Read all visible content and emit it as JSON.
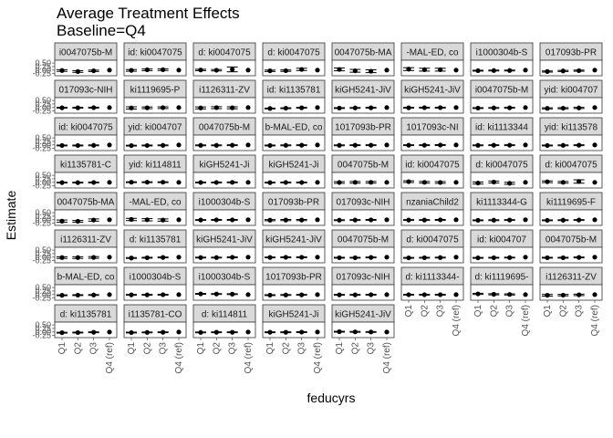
{
  "chart_data": {
    "type": "scatter",
    "title": "Average Treatment Effects",
    "subtitle": "Baseline=Q4",
    "xlabel": "feducyrs",
    "ylabel": "Estimate",
    "x_categories": [
      "Q1",
      "Q2",
      "Q3",
      "Q4 (ref)"
    ],
    "y_ticks": [
      0.5,
      0.25,
      0.0,
      -0.25
    ],
    "y_tick_labels": [
      "0.50",
      "0.25",
      "0.00",
      "-0.25"
    ],
    "ylim": [
      -0.4,
      0.7
    ],
    "grid": false,
    "layout": "facet_wrap",
    "point_color": "#000000",
    "strip_fill": "#d9d9d9",
    "panels": [
      {
        "strip": "i0047075b-M",
        "values": [
          -0.03,
          -0.1,
          -0.05,
          0.0
        ],
        "err": [
          0.06,
          0.06,
          0.05,
          0
        ]
      },
      {
        "strip": "id: ki0047075",
        "values": [
          -0.02,
          0.02,
          0.03,
          0.0
        ],
        "err": [
          0.06,
          0.06,
          0.06,
          0
        ]
      },
      {
        "strip": "d: ki0047075",
        "values": [
          0.01,
          -0.01,
          0.05,
          0.0
        ],
        "err": [
          0.05,
          0.05,
          0.17,
          0
        ]
      },
      {
        "strip": "d: ki0047075",
        "values": [
          -0.05,
          -0.04,
          0.05,
          0.0
        ],
        "err": [
          0.05,
          0.05,
          0.08,
          0
        ]
      },
      {
        "strip": "0047075b-MA",
        "values": [
          0.05,
          -0.05,
          -0.08,
          0.0
        ],
        "err": [
          0.1,
          0.1,
          0.1,
          0
        ]
      },
      {
        "strip": "-MAL-ED, co",
        "values": [
          0.07,
          0.03,
          0.03,
          0.0
        ],
        "err": [
          0.1,
          0.1,
          0.1,
          0
        ]
      },
      {
        "strip": "i1000304b-S",
        "values": [
          -0.04,
          -0.03,
          -0.03,
          0.0
        ],
        "err": [
          0.03,
          0.03,
          0.03,
          0
        ]
      },
      {
        "strip": "017093b-PR",
        "values": [
          -0.1,
          -0.06,
          -0.04,
          0.0
        ],
        "err": [
          0.04,
          0.04,
          0.04,
          0
        ]
      },
      {
        "strip": "017093c-NIH",
        "values": [
          -0.02,
          -0.02,
          -0.01,
          0.0
        ],
        "err": [
          0.03,
          0.03,
          0.03,
          0
        ]
      },
      {
        "strip": "ki1119695-P",
        "values": [
          -0.03,
          -0.02,
          -0.01,
          0.0
        ],
        "err": [
          0.08,
          0.06,
          0.06,
          0
        ]
      },
      {
        "strip": "i1126311-ZV",
        "values": [
          -0.03,
          -0.01,
          -0.02,
          0.0
        ],
        "err": [
          0.07,
          0.07,
          0.07,
          0
        ]
      },
      {
        "strip": "id: ki1135781",
        "values": [
          -0.07,
          -0.05,
          -0.02,
          0.0
        ],
        "err": [
          0.03,
          0.03,
          0.03,
          0
        ]
      },
      {
        "strip": "kiGH5241-JiV",
        "values": [
          -0.04,
          -0.03,
          -0.02,
          0.0
        ],
        "err": [
          0.03,
          0.03,
          0.03,
          0
        ]
      },
      {
        "strip": "kiGH5241-JiV",
        "values": [
          -0.02,
          -0.01,
          -0.01,
          0.0
        ],
        "err": [
          0.03,
          0.03,
          0.03,
          0
        ]
      },
      {
        "strip": "i0047075b-M",
        "values": [
          -0.04,
          -0.03,
          -0.02,
          0.0
        ],
        "err": [
          0.03,
          0.03,
          0.03,
          0
        ]
      },
      {
        "strip": "yid: ki004707",
        "values": [
          -0.06,
          -0.05,
          -0.03,
          0.0
        ],
        "err": [
          0.04,
          0.04,
          0.04,
          0
        ]
      },
      {
        "strip": "id: ki0047075",
        "values": [
          -0.04,
          -0.04,
          -0.03,
          0.0
        ],
        "err": [
          0.03,
          0.03,
          0.03,
          0
        ]
      },
      {
        "strip": "yid: ki004707",
        "values": [
          -0.05,
          -0.04,
          -0.03,
          0.0
        ],
        "err": [
          0.03,
          0.03,
          0.03,
          0
        ]
      },
      {
        "strip": "0047075b-M",
        "values": [
          -0.03,
          -0.03,
          -0.02,
          0.0
        ],
        "err": [
          0.03,
          0.03,
          0.03,
          0
        ]
      },
      {
        "strip": "b-MAL-ED, co",
        "values": [
          -0.04,
          -0.03,
          -0.02,
          0.0
        ],
        "err": [
          0.03,
          0.03,
          0.03,
          0
        ]
      },
      {
        "strip": "1017093b-PR",
        "values": [
          -0.03,
          -0.02,
          -0.02,
          0.0
        ],
        "err": [
          0.03,
          0.03,
          0.03,
          0
        ]
      },
      {
        "strip": "1017093c-NI",
        "values": [
          -0.02,
          -0.02,
          -0.01,
          0.0
        ],
        "err": [
          0.03,
          0.03,
          0.03,
          0
        ]
      },
      {
        "strip": "id: ki1113344",
        "values": [
          -0.03,
          -0.02,
          -0.02,
          0.0
        ],
        "err": [
          0.03,
          0.03,
          0.03,
          0
        ]
      },
      {
        "strip": "yid: ki113578",
        "values": [
          -0.04,
          -0.03,
          -0.02,
          0.0
        ],
        "err": [
          0.03,
          0.03,
          0.03,
          0
        ]
      },
      {
        "strip": "ki1135781-C",
        "values": [
          -0.02,
          -0.02,
          -0.01,
          0.0
        ],
        "err": [
          0.03,
          0.03,
          0.03,
          0
        ]
      },
      {
        "strip": "yid: ki114811",
        "values": [
          0.01,
          0.01,
          0.01,
          0.0
        ],
        "err": [
          0.03,
          0.03,
          0.03,
          0
        ]
      },
      {
        "strip": "kiGH5241-Ji",
        "values": [
          -0.01,
          -0.01,
          0.0,
          0.0
        ],
        "err": [
          0.03,
          0.03,
          0.03,
          0
        ]
      },
      {
        "strip": "kiGH5241-Ji",
        "values": [
          -0.02,
          -0.01,
          -0.01,
          0.0
        ],
        "err": [
          0.03,
          0.03,
          0.03,
          0
        ]
      },
      {
        "strip": "0047075b-M",
        "values": [
          -0.01,
          0.0,
          0.0,
          0.0
        ],
        "err": [
          0.06,
          0.06,
          0.06,
          0
        ]
      },
      {
        "strip": "id: ki0047075",
        "values": [
          0.05,
          0.0,
          -0.01,
          0.0
        ],
        "err": [
          0.06,
          0.06,
          0.06,
          0
        ]
      },
      {
        "strip": "d: ki0047075",
        "values": [
          -0.05,
          0.02,
          -0.07,
          0.0
        ],
        "err": [
          0.07,
          0.07,
          0.07,
          0
        ]
      },
      {
        "strip": "d: ki0047075",
        "values": [
          0.04,
          0.0,
          0.06,
          0.0
        ],
        "err": [
          0.06,
          0.06,
          0.12,
          0
        ]
      },
      {
        "strip": "0047075b-MA",
        "values": [
          -0.1,
          -0.11,
          -0.02,
          0.0
        ],
        "err": [
          0.08,
          0.06,
          0.08,
          0
        ]
      },
      {
        "strip": "-MAL-ED, co",
        "values": [
          0.02,
          0.0,
          -0.02,
          0.0
        ],
        "err": [
          0.08,
          0.08,
          0.08,
          0
        ]
      },
      {
        "strip": "i1000304b-S",
        "values": [
          -0.02,
          -0.01,
          -0.01,
          0.0
        ],
        "err": [
          0.03,
          0.03,
          0.03,
          0
        ]
      },
      {
        "strip": "017093b-PR",
        "values": [
          -0.03,
          -0.02,
          -0.02,
          0.0
        ],
        "err": [
          0.04,
          0.04,
          0.04,
          0
        ]
      },
      {
        "strip": "017093c-NIH",
        "values": [
          -0.03,
          -0.02,
          -0.01,
          0.0
        ],
        "err": [
          0.03,
          0.03,
          0.03,
          0
        ]
      },
      {
        "strip": "nzaniaChild2",
        "values": [
          -0.02,
          -0.02,
          -0.01,
          0.0
        ],
        "err": [
          0.03,
          0.03,
          0.03,
          0
        ]
      },
      {
        "strip": "ki1113344-G",
        "values": [
          -0.04,
          -0.03,
          -0.02,
          0.0
        ],
        "err": [
          0.03,
          0.03,
          0.03,
          0
        ]
      },
      {
        "strip": "ki1119695-F",
        "values": [
          -0.04,
          -0.03,
          -0.02,
          0.0
        ],
        "err": [
          0.03,
          0.03,
          0.03,
          0
        ]
      },
      {
        "strip": "i1126311-ZV",
        "values": [
          -0.03,
          -0.03,
          -0.02,
          0.0
        ],
        "err": [
          0.06,
          0.06,
          0.06,
          0
        ]
      },
      {
        "strip": "d: ki1135781",
        "values": [
          -0.06,
          -0.04,
          -0.02,
          0.0
        ],
        "err": [
          0.03,
          0.03,
          0.03,
          0
        ]
      },
      {
        "strip": "kiGH5241-JiV",
        "values": [
          -0.03,
          -0.03,
          -0.01,
          0.0
        ],
        "err": [
          0.03,
          0.03,
          0.03,
          0
        ]
      },
      {
        "strip": "kiGH5241-JiV",
        "values": [
          -0.02,
          -0.01,
          -0.01,
          0.0
        ],
        "err": [
          0.03,
          0.03,
          0.03,
          0
        ]
      },
      {
        "strip": "0047075b-M",
        "values": [
          -0.04,
          -0.04,
          -0.02,
          0.0
        ],
        "err": [
          0.03,
          0.03,
          0.03,
          0
        ]
      },
      {
        "strip": "d: ki0047075",
        "values": [
          -0.05,
          -0.04,
          -0.03,
          0.0
        ],
        "err": [
          0.03,
          0.03,
          0.03,
          0
        ]
      },
      {
        "strip": "id: ki004707",
        "values": [
          -0.05,
          -0.04,
          -0.03,
          0.0
        ],
        "err": [
          0.03,
          0.03,
          0.03,
          0
        ]
      },
      {
        "strip": "0047075b-M",
        "values": [
          -0.04,
          -0.04,
          -0.02,
          0.0
        ],
        "err": [
          0.03,
          0.03,
          0.03,
          0
        ]
      },
      {
        "strip": "b-MAL-ED, co",
        "values": [
          -0.05,
          -0.04,
          -0.03,
          0.0
        ],
        "err": [
          0.03,
          0.03,
          0.03,
          0
        ]
      },
      {
        "strip": "i1000304b-S",
        "values": [
          -0.02,
          -0.02,
          -0.01,
          0.0
        ],
        "err": [
          0.03,
          0.03,
          0.03,
          0
        ]
      },
      {
        "strip": "i1000304b-S",
        "values": [
          0.05,
          0.04,
          0.03,
          0.0
        ],
        "err": [
          0.03,
          0.03,
          0.03,
          0
        ]
      },
      {
        "strip": "1017093b-PR",
        "values": [
          -0.04,
          -0.03,
          -0.02,
          0.0
        ],
        "err": [
          0.03,
          0.03,
          0.03,
          0
        ]
      },
      {
        "strip": "017093c-NIH",
        "values": [
          -0.02,
          -0.02,
          -0.01,
          0.0
        ],
        "err": [
          0.03,
          0.03,
          0.03,
          0
        ]
      },
      {
        "strip": "d: ki1113344-",
        "values": [
          -0.01,
          -0.01,
          -0.01,
          0.0
        ],
        "err": [
          0.03,
          0.03,
          0.03,
          0
        ]
      },
      {
        "strip": "d: ki1119695-",
        "values": [
          0.05,
          0.02,
          0.01,
          0.0
        ],
        "err": [
          0.04,
          0.04,
          0.04,
          0
        ]
      },
      {
        "strip": "i1126311-ZV",
        "values": [
          -0.05,
          -0.04,
          -0.02,
          0.0
        ],
        "err": [
          0.06,
          0.05,
          0.05,
          0
        ]
      },
      {
        "strip": "d: ki1135781",
        "values": [
          -0.05,
          -0.04,
          -0.02,
          0.0
        ],
        "err": [
          0.03,
          0.03,
          0.03,
          0
        ]
      },
      {
        "strip": "i1135781-CO",
        "values": [
          -0.04,
          -0.03,
          -0.02,
          0.0
        ],
        "err": [
          0.03,
          0.03,
          0.03,
          0
        ]
      },
      {
        "strip": "d: ki114811",
        "values": [
          -0.03,
          -0.02,
          -0.02,
          0.0
        ],
        "err": [
          0.03,
          0.03,
          0.03,
          0
        ]
      },
      {
        "strip": "kiGH5241-Ji",
        "values": [
          -0.02,
          -0.02,
          -0.01,
          0.0
        ],
        "err": [
          0.03,
          0.03,
          0.03,
          0
        ]
      },
      {
        "strip": "kiGH5241-JiV",
        "values": [
          0.02,
          0.01,
          0.0,
          0.0
        ],
        "err": [
          0.03,
          0.03,
          0.03,
          0
        ]
      }
    ]
  }
}
